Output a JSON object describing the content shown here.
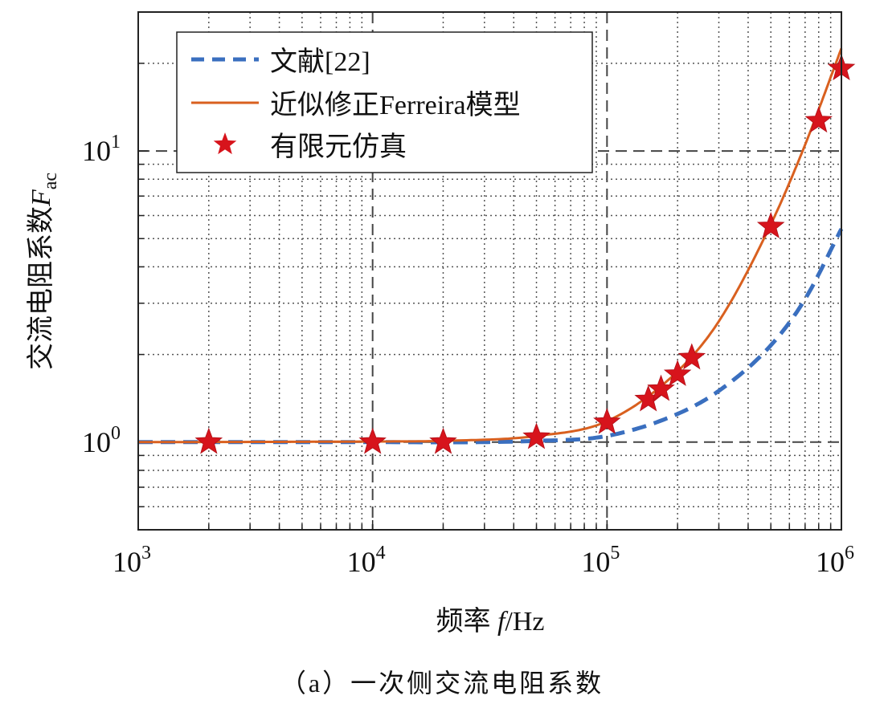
{
  "chart_data": {
    "type": "line",
    "xscale": "log",
    "yscale": "log",
    "xlim": [
      1000,
      1000000
    ],
    "ylim": [
      0.5,
      30
    ],
    "grid": true,
    "xlabel": {
      "main": "频率 ",
      "var": "f",
      "unit": "/Hz"
    },
    "ylabel": {
      "main": "交流电阻系数",
      "var": "F",
      "sub": "ac"
    },
    "xticks": [
      {
        "base": "10",
        "exp": "3",
        "value": 1000
      },
      {
        "base": "10",
        "exp": "4",
        "value": 10000
      },
      {
        "base": "10",
        "exp": "5",
        "value": 100000
      },
      {
        "base": "10",
        "exp": "6",
        "value": 1000000
      }
    ],
    "yticks": [
      {
        "base": "10",
        "exp": "0",
        "value": 1
      },
      {
        "base": "10",
        "exp": "1",
        "value": 10
      }
    ],
    "legend_position": "top-left",
    "caption": "（a）一次侧交流电阻系数",
    "series": [
      {
        "name": "文献[22]",
        "style": "dashed",
        "color": "#3a6fbf",
        "x": [
          1000,
          10000,
          50000,
          100000,
          200000,
          300000,
          500000,
          700000,
          1000000
        ],
        "y": [
          1.0,
          1.0,
          1.01,
          1.05,
          1.25,
          1.5,
          2.15,
          3.1,
          5.4
        ]
      },
      {
        "name": "近似修正Ferreira模型",
        "style": "solid",
        "color": "#d9601f",
        "x": [
          1000,
          10000,
          20000,
          50000,
          100000,
          200000,
          300000,
          500000,
          700000,
          1000000
        ],
        "y": [
          1.0,
          1.005,
          1.01,
          1.05,
          1.18,
          1.75,
          2.6,
          5.6,
          10.5,
          22.5
        ]
      },
      {
        "name": "有限元仿真",
        "style": "star-markers",
        "color": "#d7141c",
        "x": [
          2000,
          10000,
          20000,
          50000,
          100000,
          150000,
          170000,
          200000,
          230000,
          500000,
          800000,
          1000000
        ],
        "y": [
          1.0,
          1.0,
          1.0,
          1.04,
          1.17,
          1.4,
          1.52,
          1.71,
          1.95,
          5.5,
          12.7,
          19.2
        ]
      }
    ]
  }
}
